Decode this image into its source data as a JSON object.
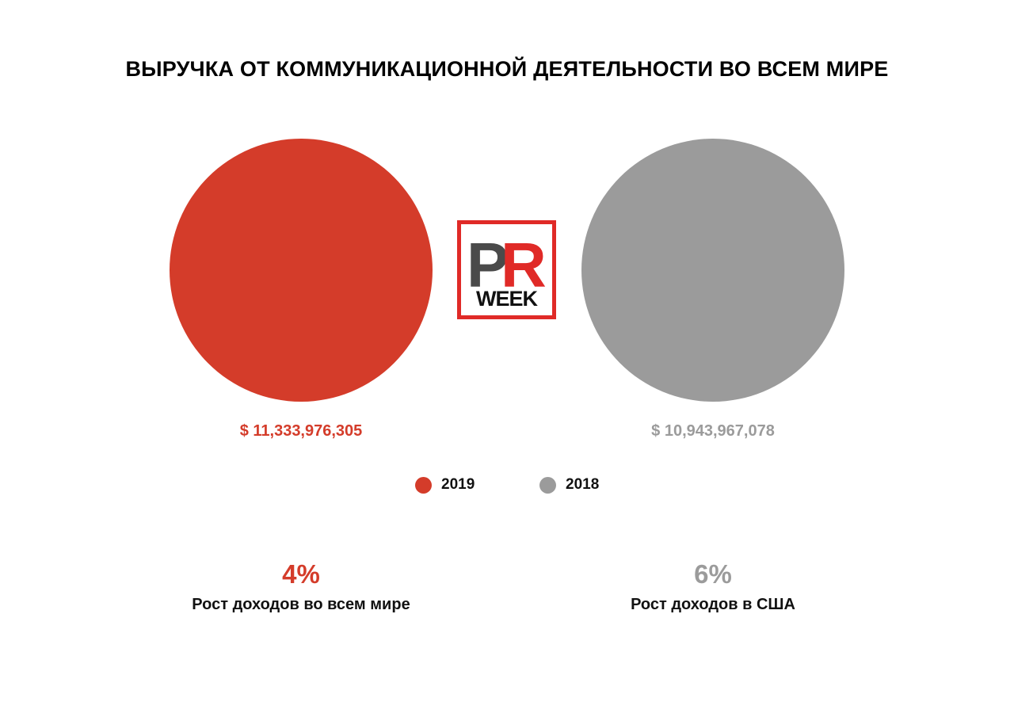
{
  "colors": {
    "red": "#d43c2a",
    "gray": "#9b9b9b",
    "logo_dark": "#4a4a4a",
    "logo_red": "#e02a27",
    "logo_black": "#111111"
  },
  "logo": {
    "letter_p": "P",
    "letter_r": "R",
    "word": "WEEK"
  },
  "chart_data": {
    "type": "bubble",
    "title": "ВЫРУЧКА ОТ КОММУНИКАЦИОННОЙ ДЕЯТЕЛЬНОСТИ ВО ВСЕМ МИРЕ",
    "series": [
      {
        "name": "2019",
        "value": 11333976305,
        "label": "$ 11,333,976,305",
        "color": "#d43c2a"
      },
      {
        "name": "2018",
        "value": 10943967078,
        "label": "$ 10,943,967,078",
        "color": "#9b9b9b"
      }
    ],
    "legend": [
      "2019",
      "2018"
    ],
    "legend_position": "center-bottom",
    "stats": [
      {
        "value": "4%",
        "caption": "Рост доходов во всем мире",
        "color": "#d43c2a"
      },
      {
        "value": "6%",
        "caption": "Рост доходов в США",
        "color": "#9b9b9b"
      }
    ]
  }
}
